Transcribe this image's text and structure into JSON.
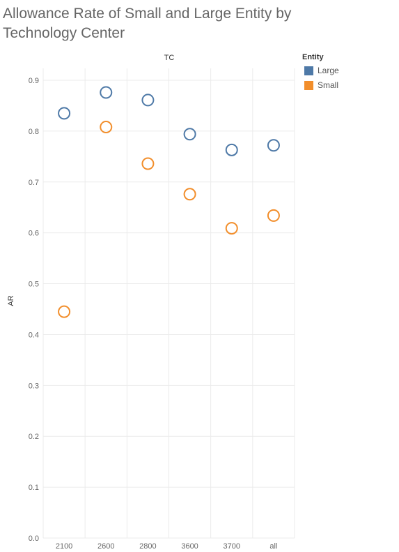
{
  "chart_data": {
    "type": "scatter",
    "title": "Allowance Rate of Small and Large Entity by Technology Center",
    "column_header": "TC",
    "xlabel": "",
    "ylabel": "AR",
    "categories": [
      "2100",
      "2600",
      "2800",
      "3600",
      "3700",
      "all"
    ],
    "ylim": [
      0,
      0.9
    ],
    "yticks": [
      "0.0",
      "0.1",
      "0.2",
      "0.3",
      "0.4",
      "0.5",
      "0.6",
      "0.7",
      "0.8",
      "0.9"
    ],
    "grid": true,
    "legend_position": "top-right",
    "legend_title": "Entity",
    "series": [
      {
        "name": "Large",
        "color": "#4e79a7",
        "values": [
          0.835,
          0.876,
          0.861,
          0.794,
          0.763,
          0.772
        ]
      },
      {
        "name": "Small",
        "color": "#f28e2b",
        "values": [
          0.445,
          0.808,
          0.736,
          0.676,
          0.609,
          0.634
        ]
      }
    ]
  }
}
